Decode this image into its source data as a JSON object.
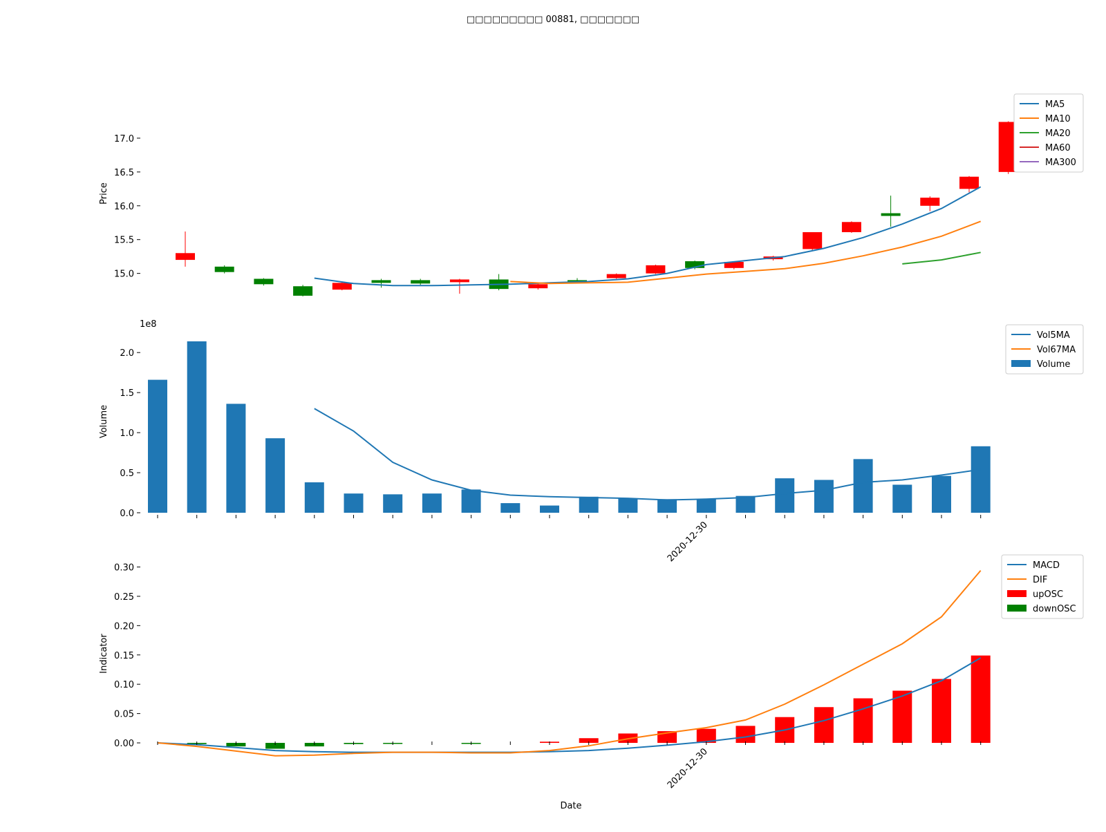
{
  "title": "□□□□□□□□□ 00881, □□□□□□□",
  "colors": {
    "up": "#ff0000",
    "down": "#008000",
    "blue": "#1f77b4",
    "orange": "#ff7f0e",
    "green": "#2ca02c",
    "red": "#d62728",
    "purple": "#9467bd"
  },
  "chart_data": [
    {
      "type": "candlestick",
      "ylabel": "Price",
      "ylim": [
        14.7,
        17.5
      ],
      "yticks": [
        "15.0",
        "15.5",
        "16.0",
        "16.5",
        "17.0"
      ],
      "candles": [
        {
          "o": 15.2,
          "h": 15.62,
          "l": 15.1,
          "c": 15.3
        },
        {
          "o": 15.1,
          "h": 15.12,
          "l": 15.0,
          "c": 15.02
        },
        {
          "o": 14.92,
          "h": 14.93,
          "l": 14.82,
          "c": 14.84
        },
        {
          "o": 14.81,
          "h": 14.83,
          "l": 14.66,
          "c": 14.67
        },
        {
          "o": 14.76,
          "h": 14.88,
          "l": 14.75,
          "c": 14.86
        },
        {
          "o": 14.9,
          "h": 14.92,
          "l": 14.79,
          "c": 14.86
        },
        {
          "o": 14.9,
          "h": 14.92,
          "l": 14.83,
          "c": 14.85
        },
        {
          "o": 14.87,
          "h": 14.92,
          "l": 14.7,
          "c": 14.91
        },
        {
          "o": 14.91,
          "h": 14.99,
          "l": 14.75,
          "c": 14.77
        },
        {
          "o": 14.78,
          "h": 14.85,
          "l": 14.76,
          "c": 14.84
        },
        {
          "o": 14.9,
          "h": 14.93,
          "l": 14.86,
          "c": 14.88
        },
        {
          "o": 14.93,
          "h": 15.0,
          "l": 14.92,
          "c": 14.99
        },
        {
          "o": 15.0,
          "h": 15.13,
          "l": 14.99,
          "c": 15.12
        },
        {
          "o": 15.18,
          "h": 15.19,
          "l": 15.06,
          "c": 15.08
        },
        {
          "o": 15.08,
          "h": 15.17,
          "l": 15.06,
          "c": 15.17
        },
        {
          "o": 15.21,
          "h": 15.26,
          "l": 15.19,
          "c": 15.25
        },
        {
          "o": 15.36,
          "h": 15.6,
          "l": 15.33,
          "c": 15.61
        },
        {
          "o": 15.61,
          "h": 15.77,
          "l": 15.6,
          "c": 15.76
        },
        {
          "o": 15.89,
          "h": 16.15,
          "l": 15.69,
          "c": 15.85
        },
        {
          "o": 16.0,
          "h": 16.14,
          "l": 15.92,
          "c": 16.12
        },
        {
          "o": 16.25,
          "h": 16.44,
          "l": 16.2,
          "c": 16.43
        },
        {
          "o": 16.5,
          "h": 17.25,
          "l": 16.47,
          "c": 17.24
        }
      ],
      "series": [
        {
          "name": "MA5",
          "values": [
            null,
            null,
            null,
            null,
            14.93,
            14.85,
            14.82,
            14.82,
            14.83,
            14.84,
            14.86,
            14.88,
            14.92,
            15.0,
            15.13,
            15.19,
            15.25,
            15.37,
            15.53,
            15.73,
            15.96,
            16.28
          ]
        },
        {
          "name": "MA10",
          "values": [
            null,
            null,
            null,
            null,
            null,
            null,
            null,
            null,
            null,
            14.88,
            14.85,
            14.86,
            14.87,
            14.93,
            14.99,
            15.03,
            15.07,
            15.15,
            15.26,
            15.39,
            15.55,
            15.77
          ]
        },
        {
          "name": "MA20",
          "values": [
            null,
            null,
            null,
            null,
            null,
            null,
            null,
            null,
            null,
            null,
            null,
            null,
            null,
            null,
            null,
            null,
            null,
            null,
            null,
            15.14,
            15.2,
            15.31
          ]
        },
        {
          "name": "MA60",
          "values": []
        },
        {
          "name": "MA300",
          "values": []
        }
      ]
    },
    {
      "type": "bar",
      "ylabel": "Volume",
      "scale_label": "1e8",
      "ylim": [
        0,
        2.2
      ],
      "yticks": [
        "0.0",
        "0.5",
        "1.0",
        "1.5",
        "2.0"
      ],
      "values": [
        1.66,
        2.14,
        1.36,
        0.93,
        0.38,
        0.24,
        0.23,
        0.24,
        0.29,
        0.12,
        0.09,
        0.2,
        0.18,
        0.17,
        0.17,
        0.21,
        0.43,
        0.41,
        0.67,
        0.35,
        0.46,
        0.83
      ],
      "series": [
        {
          "name": "Vol5MA",
          "values": [
            null,
            null,
            null,
            null,
            1.3,
            1.02,
            0.63,
            0.41,
            0.28,
            0.22,
            0.2,
            0.19,
            0.18,
            0.16,
            0.17,
            0.19,
            0.24,
            0.28,
            0.38,
            0.41,
            0.47,
            0.54
          ]
        },
        {
          "name": "Vol67MA",
          "values": []
        },
        {
          "name": "Volume",
          "values": []
        }
      ],
      "xtick_label": "2020-12-30"
    },
    {
      "type": "bar",
      "ylabel": "Indicator",
      "xlabel": "Date",
      "ylim": [
        -0.02,
        0.31
      ],
      "yticks": [
        "0.00",
        "0.05",
        "0.10",
        "0.15",
        "0.20",
        "0.25",
        "0.30"
      ],
      "osc": [
        0.0,
        -0.002,
        -0.006,
        -0.01,
        -0.006,
        -0.002,
        -0.0005,
        0.0,
        -0.0005,
        0.0,
        0.002,
        0.008,
        0.016,
        0.02,
        0.024,
        0.029,
        0.044,
        0.061,
        0.076,
        0.089,
        0.109,
        0.149
      ],
      "series": [
        {
          "name": "MACD",
          "values": [
            0.0,
            -0.003,
            -0.008,
            -0.013,
            -0.015,
            -0.016,
            -0.016,
            -0.016,
            -0.016,
            -0.016,
            -0.015,
            -0.013,
            -0.009,
            -0.004,
            0.002,
            0.01,
            0.022,
            0.038,
            0.058,
            0.08,
            0.106,
            0.145
          ]
        },
        {
          "name": "DIF",
          "values": [
            0.0,
            -0.006,
            -0.014,
            -0.022,
            -0.021,
            -0.018,
            -0.016,
            -0.016,
            -0.017,
            -0.017,
            -0.013,
            -0.005,
            0.007,
            0.017,
            0.026,
            0.039,
            0.066,
            0.099,
            0.134,
            0.169,
            0.215,
            0.294
          ]
        },
        {
          "name": "upOSC",
          "values": []
        },
        {
          "name": "downOSC",
          "values": []
        }
      ],
      "xtick_label": "2020-12-30"
    }
  ]
}
